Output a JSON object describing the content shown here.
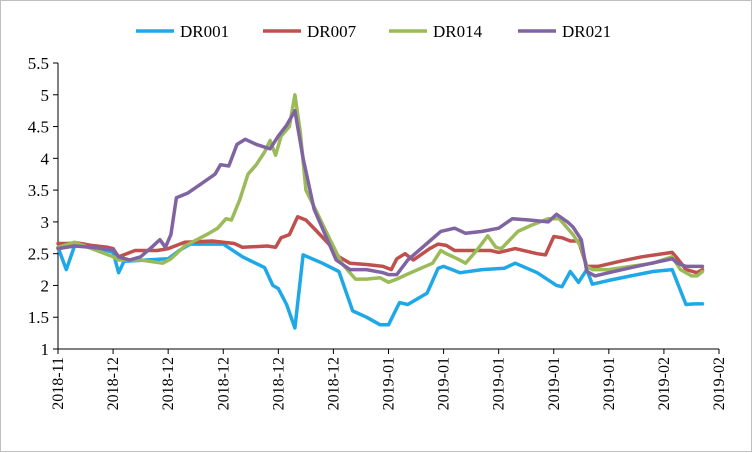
{
  "chart_data": {
    "type": "line",
    "title": "",
    "xlabel": "",
    "ylabel": "",
    "ylim": [
      1,
      5.5
    ],
    "yticks": [
      "1",
      "1.5",
      "2",
      "2.5",
      "3",
      "3.5",
      "4",
      "4.5",
      "5",
      "5.5"
    ],
    "xticks": [
      "2018-11",
      "2018-12",
      "2018-12",
      "2018-12",
      "2018-12",
      "2018-12",
      "2019-01",
      "2019-01",
      "2019-01",
      "2019-01",
      "2019-01",
      "2019-02",
      "2019-02"
    ],
    "grid": false,
    "legend_position": "top",
    "series": [
      {
        "name": "DR001",
        "color": "#1FA8E8",
        "points": [
          [
            0,
            2.6
          ],
          [
            0.15,
            2.25
          ],
          [
            0.3,
            2.62
          ],
          [
            0.6,
            2.62
          ],
          [
            1.0,
            2.52
          ],
          [
            1.1,
            2.2
          ],
          [
            1.2,
            2.38
          ],
          [
            1.6,
            2.4
          ],
          [
            2.0,
            2.42
          ],
          [
            2.2,
            2.55
          ],
          [
            2.4,
            2.65
          ],
          [
            3.0,
            2.65
          ],
          [
            3.35,
            2.45
          ],
          [
            3.75,
            2.28
          ],
          [
            3.9,
            2.0
          ],
          [
            4.0,
            1.95
          ],
          [
            4.15,
            1.7
          ],
          [
            4.3,
            1.33
          ],
          [
            4.45,
            2.48
          ],
          [
            4.8,
            2.35
          ],
          [
            5.1,
            2.22
          ],
          [
            5.35,
            1.6
          ],
          [
            5.6,
            1.5
          ],
          [
            5.85,
            1.38
          ],
          [
            6.0,
            1.38
          ],
          [
            6.2,
            1.73
          ],
          [
            6.35,
            1.7
          ],
          [
            6.7,
            1.88
          ],
          [
            6.9,
            2.27
          ],
          [
            7.0,
            2.3
          ],
          [
            7.3,
            2.2
          ],
          [
            7.7,
            2.25
          ],
          [
            8.1,
            2.27
          ],
          [
            8.3,
            2.35
          ],
          [
            8.7,
            2.2
          ],
          [
            9.05,
            2.0
          ],
          [
            9.15,
            1.98
          ],
          [
            9.3,
            2.22
          ],
          [
            9.45,
            2.05
          ],
          [
            9.6,
            2.25
          ],
          [
            9.7,
            2.02
          ],
          [
            10.0,
            2.08
          ],
          [
            10.4,
            2.15
          ],
          [
            10.8,
            2.22
          ],
          [
            11.15,
            2.25
          ],
          [
            11.4,
            1.7
          ],
          [
            11.55,
            1.71
          ],
          [
            11.7,
            1.71
          ]
        ]
      },
      {
        "name": "DR007",
        "color": "#C0504D",
        "points": [
          [
            0,
            2.66
          ],
          [
            0.15,
            2.66
          ],
          [
            0.35,
            2.67
          ],
          [
            0.6,
            2.63
          ],
          [
            0.9,
            2.6
          ],
          [
            1.0,
            2.58
          ],
          [
            1.1,
            2.45
          ],
          [
            1.4,
            2.55
          ],
          [
            1.8,
            2.55
          ],
          [
            2.0,
            2.58
          ],
          [
            2.3,
            2.68
          ],
          [
            2.8,
            2.7
          ],
          [
            3.2,
            2.66
          ],
          [
            3.35,
            2.6
          ],
          [
            3.8,
            2.62
          ],
          [
            3.95,
            2.6
          ],
          [
            4.05,
            2.75
          ],
          [
            4.2,
            2.8
          ],
          [
            4.35,
            3.08
          ],
          [
            4.5,
            3.03
          ],
          [
            4.7,
            2.85
          ],
          [
            4.95,
            2.62
          ],
          [
            5.1,
            2.45
          ],
          [
            5.3,
            2.35
          ],
          [
            5.6,
            2.33
          ],
          [
            5.9,
            2.3
          ],
          [
            6.05,
            2.25
          ],
          [
            6.15,
            2.42
          ],
          [
            6.3,
            2.5
          ],
          [
            6.45,
            2.4
          ],
          [
            6.75,
            2.58
          ],
          [
            6.9,
            2.65
          ],
          [
            7.05,
            2.63
          ],
          [
            7.2,
            2.55
          ],
          [
            7.6,
            2.55
          ],
          [
            7.85,
            2.55
          ],
          [
            8.0,
            2.52
          ],
          [
            8.3,
            2.58
          ],
          [
            8.7,
            2.5
          ],
          [
            8.85,
            2.48
          ],
          [
            9.0,
            2.77
          ],
          [
            9.15,
            2.75
          ],
          [
            9.3,
            2.7
          ],
          [
            9.45,
            2.7
          ],
          [
            9.6,
            2.3
          ],
          [
            9.8,
            2.3
          ],
          [
            10.2,
            2.38
          ],
          [
            10.6,
            2.45
          ],
          [
            11.15,
            2.52
          ],
          [
            11.25,
            2.42
          ],
          [
            11.4,
            2.25
          ],
          [
            11.6,
            2.2
          ],
          [
            11.7,
            2.25
          ]
        ]
      },
      {
        "name": "DR014",
        "color": "#9BBB59",
        "points": [
          [
            0,
            2.6
          ],
          [
            0.3,
            2.68
          ],
          [
            0.7,
            2.55
          ],
          [
            1.0,
            2.45
          ],
          [
            1.1,
            2.4
          ],
          [
            1.5,
            2.4
          ],
          [
            1.9,
            2.35
          ],
          [
            2.05,
            2.42
          ],
          [
            2.3,
            2.62
          ],
          [
            2.7,
            2.8
          ],
          [
            2.9,
            2.9
          ],
          [
            3.05,
            3.05
          ],
          [
            3.15,
            3.03
          ],
          [
            3.3,
            3.35
          ],
          [
            3.45,
            3.75
          ],
          [
            3.6,
            3.9
          ],
          [
            3.75,
            4.1
          ],
          [
            3.85,
            4.28
          ],
          [
            3.95,
            4.05
          ],
          [
            4.05,
            4.35
          ],
          [
            4.2,
            4.5
          ],
          [
            4.3,
            5.0
          ],
          [
            4.4,
            4.4
          ],
          [
            4.5,
            3.5
          ],
          [
            4.7,
            3.15
          ],
          [
            4.95,
            2.7
          ],
          [
            5.15,
            2.35
          ],
          [
            5.4,
            2.1
          ],
          [
            5.6,
            2.1
          ],
          [
            5.85,
            2.12
          ],
          [
            6.0,
            2.05
          ],
          [
            6.15,
            2.1
          ],
          [
            6.35,
            2.18
          ],
          [
            6.8,
            2.35
          ],
          [
            6.95,
            2.55
          ],
          [
            7.05,
            2.5
          ],
          [
            7.25,
            2.42
          ],
          [
            7.4,
            2.35
          ],
          [
            7.6,
            2.55
          ],
          [
            7.8,
            2.78
          ],
          [
            7.95,
            2.6
          ],
          [
            8.05,
            2.58
          ],
          [
            8.35,
            2.85
          ],
          [
            8.6,
            2.95
          ],
          [
            8.9,
            3.05
          ],
          [
            9.1,
            3.05
          ],
          [
            9.35,
            2.8
          ],
          [
            9.5,
            2.6
          ],
          [
            9.6,
            2.3
          ],
          [
            9.7,
            2.25
          ],
          [
            10.0,
            2.25
          ],
          [
            10.4,
            2.3
          ],
          [
            10.8,
            2.35
          ],
          [
            11.15,
            2.45
          ],
          [
            11.3,
            2.25
          ],
          [
            11.5,
            2.15
          ],
          [
            11.6,
            2.15
          ],
          [
            11.7,
            2.22
          ]
        ]
      },
      {
        "name": "DR021",
        "color": "#8064A2",
        "points": [
          [
            0,
            2.58
          ],
          [
            0.3,
            2.62
          ],
          [
            0.6,
            2.6
          ],
          [
            1.0,
            2.56
          ],
          [
            1.1,
            2.45
          ],
          [
            1.3,
            2.4
          ],
          [
            1.5,
            2.45
          ],
          [
            1.7,
            2.6
          ],
          [
            1.85,
            2.72
          ],
          [
            1.95,
            2.6
          ],
          [
            2.05,
            2.8
          ],
          [
            2.15,
            3.38
          ],
          [
            2.35,
            3.45
          ],
          [
            2.6,
            3.6
          ],
          [
            2.85,
            3.75
          ],
          [
            2.95,
            3.9
          ],
          [
            3.1,
            3.88
          ],
          [
            3.25,
            4.22
          ],
          [
            3.4,
            4.3
          ],
          [
            3.6,
            4.22
          ],
          [
            3.85,
            4.15
          ],
          [
            4.0,
            4.35
          ],
          [
            4.15,
            4.52
          ],
          [
            4.3,
            4.75
          ],
          [
            4.45,
            4.0
          ],
          [
            4.65,
            3.2
          ],
          [
            5.05,
            2.4
          ],
          [
            5.3,
            2.25
          ],
          [
            5.6,
            2.25
          ],
          [
            5.9,
            2.2
          ],
          [
            6.0,
            2.17
          ],
          [
            6.15,
            2.17
          ],
          [
            6.35,
            2.4
          ],
          [
            6.75,
            2.7
          ],
          [
            6.95,
            2.85
          ],
          [
            7.2,
            2.9
          ],
          [
            7.4,
            2.82
          ],
          [
            7.7,
            2.85
          ],
          [
            8.0,
            2.9
          ],
          [
            8.25,
            3.05
          ],
          [
            8.55,
            3.03
          ],
          [
            8.9,
            3.0
          ],
          [
            9.05,
            3.12
          ],
          [
            9.25,
            3.0
          ],
          [
            9.35,
            2.92
          ],
          [
            9.5,
            2.72
          ],
          [
            9.6,
            2.22
          ],
          [
            9.75,
            2.15
          ],
          [
            10.0,
            2.2
          ],
          [
            10.5,
            2.3
          ],
          [
            11.15,
            2.42
          ],
          [
            11.25,
            2.35
          ],
          [
            11.4,
            2.3
          ],
          [
            11.7,
            2.3
          ]
        ]
      }
    ]
  }
}
